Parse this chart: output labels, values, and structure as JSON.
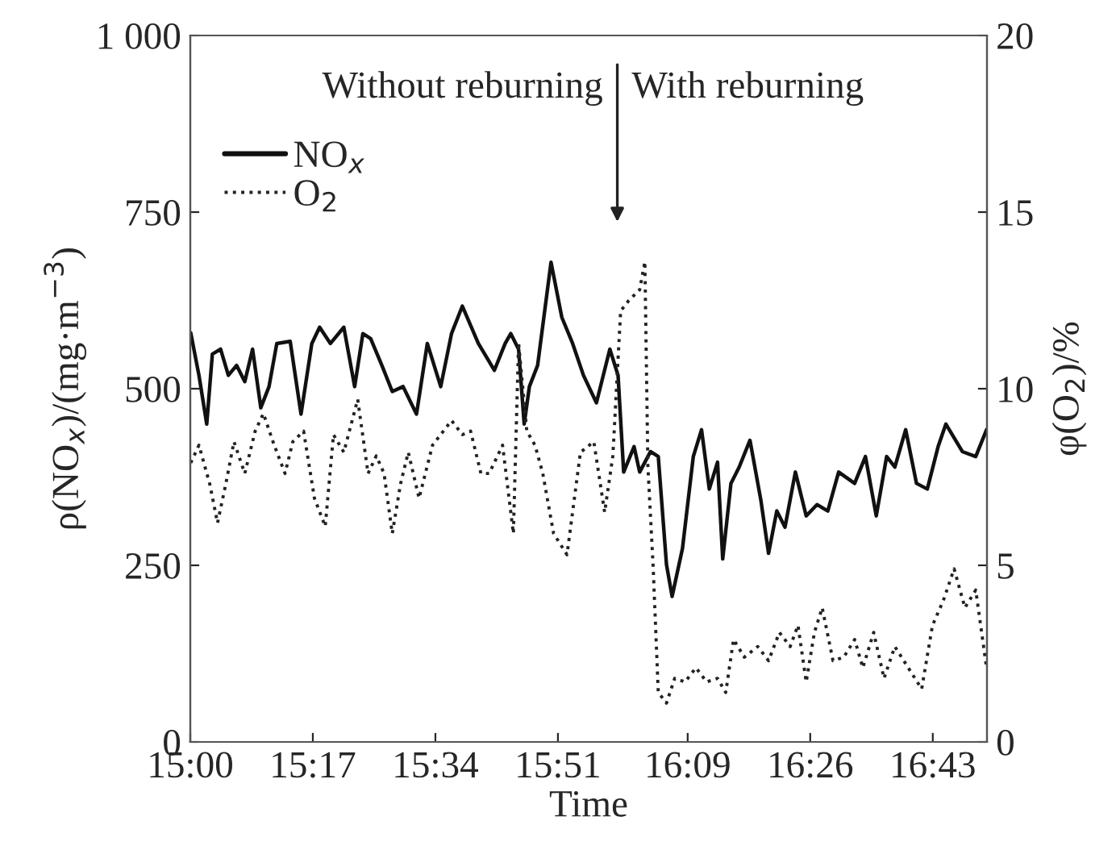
{
  "chart_data": {
    "type": "line",
    "xlabel": "Time",
    "ylabel": "ρ(NO$_{x}$)/(mg·m$^{−3}$)",
    "y2label": "φ(O$_{2}$)/%",
    "xlim": [
      15,
      16.842
    ],
    "xticks": [
      {
        "value": 15,
        "label": "15:00"
      },
      {
        "value": 15.2833,
        "label": "15:17"
      },
      {
        "value": 15.5667,
        "label": "15:34"
      },
      {
        "value": 15.85,
        "label": "15:51"
      },
      {
        "value": 16.15,
        "label": "16:09"
      },
      {
        "value": 16.4333,
        "label": "16:26"
      },
      {
        "value": 16.7167,
        "label": "16:43"
      }
    ],
    "ylim": [
      0,
      1000
    ],
    "yticks": [
      0,
      250,
      500,
      750,
      {
        "value": 1000,
        "label": "1 000"
      }
    ],
    "y2lim": [
      0,
      20
    ],
    "y2ticks": [
      0,
      5,
      10,
      15,
      20
    ],
    "grid": false,
    "legend": "top left",
    "marker": "none",
    "series": [
      {
        "name": "NO$_{x}$",
        "color": "#111111",
        "line_style": "solid",
        "x": [
          15.001,
          15.02,
          15.038,
          15.051,
          15.07,
          15.088,
          15.107,
          15.126,
          15.144,
          15.163,
          15.182,
          15.2,
          15.231,
          15.256,
          15.281,
          15.299,
          15.324,
          15.355,
          15.38,
          15.399,
          15.417,
          15.443,
          15.467,
          15.492,
          15.523,
          15.548,
          15.579,
          15.604,
          15.629,
          15.666,
          15.703,
          15.728,
          15.741,
          15.759,
          15.772,
          15.784,
          15.803,
          15.834,
          15.859,
          15.884,
          15.909,
          15.939,
          15.97,
          15.989,
          16.002,
          16.026,
          16.039,
          16.064,
          16.082,
          16.101,
          16.114,
          16.138,
          16.163,
          16.182,
          16.2,
          16.219,
          16.231,
          16.25,
          16.269,
          16.294,
          16.319,
          16.337,
          16.356,
          16.375,
          16.399,
          16.424,
          16.449,
          16.474,
          16.499,
          16.536,
          16.561,
          16.586,
          16.61,
          16.629,
          16.654,
          16.679,
          16.704,
          16.729,
          16.747,
          16.785,
          16.816,
          16.841
        ],
        "values": [
          579,
          519,
          450,
          549,
          556,
          519,
          533,
          510,
          556,
          473,
          503,
          564,
          567,
          464,
          564,
          587,
          564,
          587,
          503,
          578,
          571,
          533,
          496,
          503,
          464,
          564,
          503,
          578,
          617,
          564,
          526,
          564,
          578,
          556,
          450,
          503,
          533,
          679,
          601,
          564,
          519,
          480,
          556,
          519,
          382,
          418,
          382,
          411,
          404,
          251,
          206,
          274,
          404,
          442,
          358,
          396,
          259,
          366,
          389,
          427,
          343,
          267,
          327,
          304,
          382,
          320,
          336,
          327,
          382,
          366,
          404,
          320,
          404,
          389,
          442,
          366,
          358,
          418,
          450,
          411,
          404,
          442
        ]
      },
      {
        "name": "O$_{2}$",
        "color": "#222222",
        "line_style": "dotted",
        "axis": "y2",
        "x": [
          15.001,
          15.02,
          15.045,
          15.063,
          15.082,
          15.101,
          15.126,
          15.15,
          15.169,
          15.194,
          15.219,
          15.237,
          15.262,
          15.287,
          15.312,
          15.331,
          15.355,
          15.387,
          15.411,
          15.43,
          15.448,
          15.467,
          15.486,
          15.504,
          15.529,
          15.56,
          15.604,
          15.629,
          15.648,
          15.672,
          15.691,
          15.722,
          15.747,
          15.759,
          15.778,
          15.797,
          15.815,
          15.84,
          15.871,
          15.902,
          15.933,
          15.958,
          15.977,
          15.995,
          16.014,
          16.039,
          16.051,
          16.058,
          16.07,
          16.082,
          16.101,
          16.12,
          16.144,
          16.169,
          16.194,
          16.219,
          16.238,
          16.256,
          16.281,
          16.312,
          16.337,
          16.362,
          16.387,
          16.405,
          16.424,
          16.443,
          16.461,
          16.486,
          16.511,
          16.536,
          16.555,
          16.58,
          16.604,
          16.629,
          16.66,
          16.691,
          16.716,
          16.741,
          16.766,
          16.791,
          16.816,
          16.841
        ],
        "values": [
          7.9,
          8.4,
          7.3,
          6.2,
          7.3,
          8.5,
          7.6,
          8.8,
          9.3,
          8.4,
          7.6,
          8.5,
          8.8,
          6.9,
          6.1,
          8.7,
          8.2,
          9.7,
          7.6,
          8.1,
          7.6,
          5.9,
          7.3,
          8.2,
          6.9,
          8.4,
          9.1,
          8.7,
          8.8,
          7.6,
          7.6,
          8.4,
          5.9,
          11.3,
          8.8,
          8.4,
          7.6,
          5.9,
          5.3,
          8.2,
          8.5,
          6.5,
          8.1,
          12.2,
          12.5,
          12.8,
          13.6,
          7.8,
          5.0,
          1.4,
          1.1,
          1.8,
          1.7,
          2.1,
          1.7,
          1.8,
          1.4,
          2.9,
          2.4,
          2.7,
          2.3,
          3.1,
          2.7,
          3.3,
          1.7,
          3.1,
          3.8,
          2.3,
          2.4,
          2.9,
          2.1,
          3.1,
          1.8,
          2.7,
          2.1,
          1.5,
          3.3,
          4.0,
          4.9,
          3.8,
          4.3,
          2.1
        ]
      }
    ],
    "annotations": [
      "Without reburning",
      "With reburning"
    ]
  }
}
